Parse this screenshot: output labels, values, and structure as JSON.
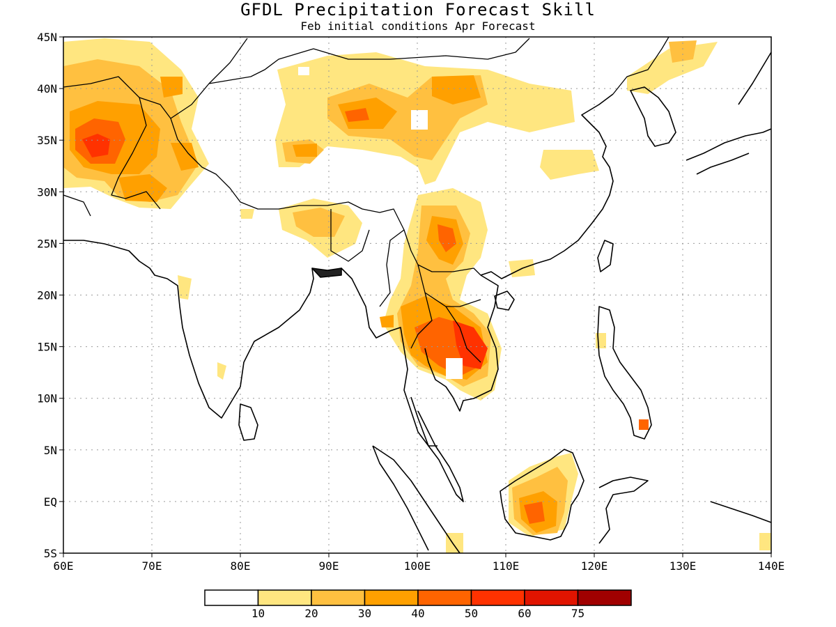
{
  "title": "GFDL Precipitation Forecast Skill",
  "subtitle": "Feb initial conditions  Apr Forecast",
  "axes": {
    "lon_range": [
      60,
      140
    ],
    "lat_range": [
      -5,
      45
    ],
    "lon_ticks": [
      60,
      70,
      80,
      90,
      100,
      110,
      120,
      130,
      140
    ],
    "lon_tick_labels": [
      "60E",
      "70E",
      "80E",
      "90E",
      "100E",
      "110E",
      "120E",
      "130E",
      "140E"
    ],
    "lat_ticks": [
      -5,
      0,
      5,
      10,
      15,
      20,
      25,
      30,
      35,
      40,
      45
    ],
    "lat_tick_labels": [
      "5S",
      "EQ",
      "5N",
      "10N",
      "15N",
      "20N",
      "25N",
      "30N",
      "35N",
      "40N",
      "45N"
    ],
    "grid": "dotted"
  },
  "colorbar": {
    "levels": [
      "10",
      "20",
      "30",
      "40",
      "50",
      "60",
      "75"
    ],
    "colors": [
      "#ffffff",
      "#ffe680",
      "#ffc040",
      "#ffa000",
      "#ff6400",
      "#ff3200",
      "#e01400",
      "#a00000"
    ]
  },
  "skill_regions": [
    {
      "lon": 64,
      "lat": 34.5,
      "level": 5
    },
    {
      "lon": 67,
      "lat": 36.5,
      "level": 4
    },
    {
      "lon": 62,
      "lat": 39,
      "level": 3
    },
    {
      "lon": 69.5,
      "lat": 30.5,
      "level": 4
    },
    {
      "lon": 73,
      "lat": 33,
      "level": 3
    },
    {
      "lon": 87.5,
      "lat": 34,
      "level": 4
    },
    {
      "lon": 91,
      "lat": 37,
      "level": 3
    },
    {
      "lon": 94,
      "lat": 38,
      "level": 4
    },
    {
      "lon": 97,
      "lat": 36,
      "level": 3
    },
    {
      "lon": 103,
      "lat": 39.5,
      "level": 3
    },
    {
      "lon": 107,
      "lat": 40.5,
      "level": 3
    },
    {
      "lon": 112.5,
      "lat": 37.5,
      "level": 2
    },
    {
      "lon": 98.5,
      "lat": 34,
      "level": 3
    },
    {
      "lon": 103,
      "lat": 26,
      "level": 5
    },
    {
      "lon": 101,
      "lat": 23,
      "level": 3
    },
    {
      "lon": 87,
      "lat": 27,
      "level": 3
    },
    {
      "lon": 105,
      "lat": 17,
      "level": 4
    },
    {
      "lon": 106.5,
      "lat": 14.5,
      "level": 6
    },
    {
      "lon": 101.5,
      "lat": 15,
      "level": 4
    },
    {
      "lon": 103,
      "lat": 14,
      "level": 5
    },
    {
      "lon": 113,
      "lat": -1.5,
      "level": 4
    },
    {
      "lon": 111,
      "lat": -0.5,
      "level": 3
    },
    {
      "lon": 115,
      "lat": 0.5,
      "level": 3
    },
    {
      "lon": 122,
      "lat": 43,
      "level": 2
    },
    {
      "lon": 126,
      "lat": 7.5,
      "level": 4
    }
  ]
}
